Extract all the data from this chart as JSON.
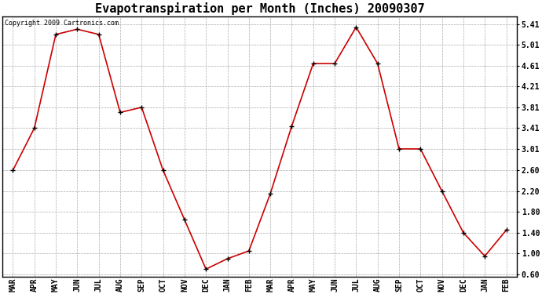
{
  "title": "Evapotranspiration per Month (Inches) 20090307",
  "copyright": "Copyright 2009 Cartronics.com",
  "months": [
    "MAR",
    "APR",
    "MAY",
    "JUN",
    "JUL",
    "AUG",
    "SEP",
    "OCT",
    "NOV",
    "DEC",
    "JAN",
    "FEB",
    "MAR",
    "APR",
    "MAY",
    "JUN",
    "JUL",
    "AUG",
    "SEP",
    "OCT",
    "NOV",
    "DEC",
    "JAN",
    "FEB"
  ],
  "values": [
    2.6,
    3.41,
    5.21,
    5.31,
    5.21,
    3.71,
    3.81,
    2.6,
    1.65,
    0.7,
    0.9,
    1.05,
    2.15,
    3.45,
    4.65,
    4.65,
    5.35,
    4.65,
    3.01,
    3.01,
    2.2,
    1.4,
    0.95,
    1.45
  ],
  "yticks": [
    0.6,
    1.0,
    1.4,
    1.8,
    2.2,
    2.6,
    3.01,
    3.41,
    3.81,
    4.21,
    4.61,
    5.01,
    5.41
  ],
  "ylim": [
    0.55,
    5.55
  ],
  "line_color": "#cc0000",
  "marker_color": "#000000",
  "grid_color": "#aaaaaa",
  "bg_color": "#ffffff",
  "plot_bg_color": "#ffffff",
  "title_fontsize": 11,
  "copyright_fontsize": 6,
  "tick_fontsize": 7,
  "figwidth": 6.9,
  "figheight": 3.75,
  "dpi": 100
}
